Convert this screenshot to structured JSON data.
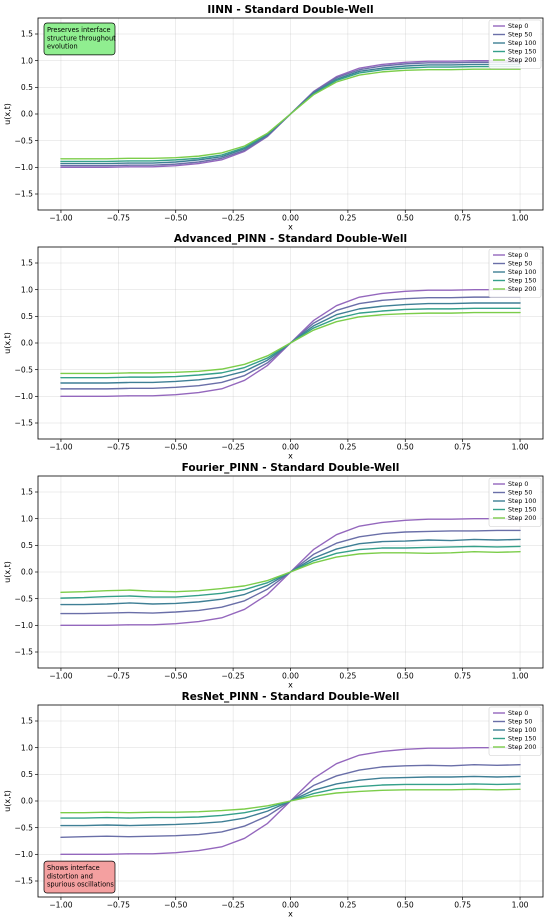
{
  "colors": {
    "Step 0": "#9467bd",
    "Step 50": "#6a6fa8",
    "Step 100": "#3f7f95",
    "Step 150": "#35a08a",
    "Step 200": "#7ccd4a"
  },
  "chart_data": [
    {
      "type": "line",
      "title": "IINN - Standard Double-Well",
      "xlabel": "x",
      "ylabel": "u(x,t)",
      "xlim": [
        -1.1,
        1.1
      ],
      "ylim": [
        -1.8,
        1.8
      ],
      "xticks": [
        -1.0,
        -0.75,
        -0.5,
        -0.25,
        0.0,
        0.25,
        0.5,
        0.75,
        1.0
      ],
      "xtick_labels": [
        "−1.00",
        "−0.75",
        "−0.50",
        "−0.25",
        "0.00",
        "0.25",
        "0.50",
        "0.75",
        "1.00"
      ],
      "yticks": [
        -1.5,
        -1.0,
        -0.5,
        0.0,
        0.5,
        1.0,
        1.5
      ],
      "ytick_labels": [
        "−1.5",
        "−1.0",
        "−0.5",
        "0.0",
        "0.5",
        "1.0",
        "1.5"
      ],
      "grid": true,
      "legend_position": "top-right",
      "x": [
        -1.0,
        -0.9,
        -0.8,
        -0.7,
        -0.6,
        -0.5,
        -0.4,
        -0.3,
        -0.2,
        -0.1,
        0.0,
        0.1,
        0.2,
        0.3,
        0.4,
        0.5,
        0.6,
        0.7,
        0.8,
        0.9,
        1.0
      ],
      "series": [
        {
          "name": "Step 0",
          "values": [
            -1.0,
            -1.0,
            -1.0,
            -0.99,
            -0.99,
            -0.97,
            -0.93,
            -0.86,
            -0.7,
            -0.42,
            0.0,
            0.42,
            0.7,
            0.86,
            0.93,
            0.97,
            0.99,
            0.99,
            1.0,
            1.0,
            1.0
          ]
        },
        {
          "name": "Step 50",
          "values": [
            -0.97,
            -0.97,
            -0.97,
            -0.96,
            -0.96,
            -0.94,
            -0.9,
            -0.83,
            -0.68,
            -0.41,
            0.0,
            0.41,
            0.68,
            0.83,
            0.9,
            0.94,
            0.96,
            0.96,
            0.97,
            0.97,
            0.97
          ]
        },
        {
          "name": "Step 100",
          "values": [
            -0.93,
            -0.93,
            -0.93,
            -0.92,
            -0.92,
            -0.9,
            -0.86,
            -0.8,
            -0.65,
            -0.39,
            0.0,
            0.39,
            0.65,
            0.8,
            0.86,
            0.9,
            0.92,
            0.92,
            0.93,
            0.93,
            0.93
          ]
        },
        {
          "name": "Step 150",
          "values": [
            -0.89,
            -0.89,
            -0.89,
            -0.88,
            -0.88,
            -0.86,
            -0.83,
            -0.77,
            -0.63,
            -0.37,
            0.0,
            0.37,
            0.63,
            0.77,
            0.83,
            0.86,
            0.88,
            0.88,
            0.89,
            0.89,
            0.89
          ]
        },
        {
          "name": "Step 200",
          "values": [
            -0.84,
            -0.84,
            -0.84,
            -0.83,
            -0.83,
            -0.82,
            -0.79,
            -0.73,
            -0.6,
            -0.36,
            0.0,
            0.36,
            0.6,
            0.73,
            0.79,
            0.82,
            0.83,
            0.83,
            0.84,
            0.84,
            0.84
          ]
        }
      ],
      "annotation": {
        "text": [
          "Preserves interface",
          "structure throughout",
          "evolution"
        ],
        "background": "#90ee90",
        "position": "top-left"
      }
    },
    {
      "type": "line",
      "title": "Advanced_PINN - Standard Double-Well",
      "xlabel": "x",
      "ylabel": "u(x,t)",
      "xlim": [
        -1.1,
        1.1
      ],
      "ylim": [
        -1.8,
        1.8
      ],
      "xticks": [
        -1.0,
        -0.75,
        -0.5,
        -0.25,
        0.0,
        0.25,
        0.5,
        0.75,
        1.0
      ],
      "xtick_labels": [
        "−1.00",
        "−0.75",
        "−0.50",
        "−0.25",
        "0.00",
        "0.25",
        "0.50",
        "0.75",
        "1.00"
      ],
      "yticks": [
        -1.5,
        -1.0,
        -0.5,
        0.0,
        0.5,
        1.0,
        1.5
      ],
      "ytick_labels": [
        "−1.5",
        "−1.0",
        "−0.5",
        "0.0",
        "0.5",
        "1.0",
        "1.5"
      ],
      "grid": true,
      "legend_position": "top-right",
      "x": [
        -1.0,
        -0.9,
        -0.8,
        -0.7,
        -0.6,
        -0.5,
        -0.4,
        -0.3,
        -0.2,
        -0.1,
        0.0,
        0.1,
        0.2,
        0.3,
        0.4,
        0.5,
        0.6,
        0.7,
        0.8,
        0.9,
        1.0
      ],
      "series": [
        {
          "name": "Step 0",
          "values": [
            -1.0,
            -1.0,
            -1.0,
            -0.99,
            -0.99,
            -0.97,
            -0.93,
            -0.86,
            -0.7,
            -0.42,
            0.0,
            0.42,
            0.7,
            0.86,
            0.93,
            0.97,
            0.99,
            0.99,
            1.0,
            1.0,
            1.0
          ]
        },
        {
          "name": "Step 50",
          "values": [
            -0.86,
            -0.86,
            -0.86,
            -0.85,
            -0.85,
            -0.83,
            -0.8,
            -0.74,
            -0.61,
            -0.37,
            0.0,
            0.37,
            0.61,
            0.74,
            0.8,
            0.83,
            0.85,
            0.85,
            0.86,
            0.86,
            0.86
          ]
        },
        {
          "name": "Step 100",
          "values": [
            -0.75,
            -0.75,
            -0.75,
            -0.74,
            -0.74,
            -0.72,
            -0.69,
            -0.64,
            -0.53,
            -0.32,
            0.0,
            0.32,
            0.53,
            0.64,
            0.69,
            0.72,
            0.74,
            0.74,
            0.75,
            0.75,
            0.75
          ]
        },
        {
          "name": "Step 150",
          "values": [
            -0.65,
            -0.65,
            -0.65,
            -0.64,
            -0.64,
            -0.63,
            -0.6,
            -0.56,
            -0.46,
            -0.28,
            0.0,
            0.28,
            0.46,
            0.56,
            0.6,
            0.63,
            0.64,
            0.64,
            0.65,
            0.65,
            0.65
          ]
        },
        {
          "name": "Step 200",
          "values": [
            -0.57,
            -0.57,
            -0.57,
            -0.56,
            -0.56,
            -0.55,
            -0.53,
            -0.49,
            -0.4,
            -0.24,
            0.0,
            0.24,
            0.4,
            0.49,
            0.53,
            0.55,
            0.56,
            0.56,
            0.57,
            0.57,
            0.57
          ]
        }
      ]
    },
    {
      "type": "line",
      "title": "Fourier_PINN - Standard Double-Well",
      "xlabel": "x",
      "ylabel": "u(x,t)",
      "xlim": [
        -1.1,
        1.1
      ],
      "ylim": [
        -1.8,
        1.8
      ],
      "xticks": [
        -1.0,
        -0.75,
        -0.5,
        -0.25,
        0.0,
        0.25,
        0.5,
        0.75,
        1.0
      ],
      "xtick_labels": [
        "−1.00",
        "−0.75",
        "−0.50",
        "−0.25",
        "0.00",
        "0.25",
        "0.50",
        "0.75",
        "1.00"
      ],
      "yticks": [
        -1.5,
        -1.0,
        -0.5,
        0.0,
        0.5,
        1.0,
        1.5
      ],
      "ytick_labels": [
        "−1.5",
        "−1.0",
        "−0.5",
        "0.0",
        "0.5",
        "1.0",
        "1.5"
      ],
      "grid": true,
      "legend_position": "top-right",
      "x": [
        -1.0,
        -0.9,
        -0.8,
        -0.7,
        -0.6,
        -0.5,
        -0.4,
        -0.3,
        -0.2,
        -0.1,
        0.0,
        0.1,
        0.2,
        0.3,
        0.4,
        0.5,
        0.6,
        0.7,
        0.8,
        0.9,
        1.0
      ],
      "series": [
        {
          "name": "Step 0",
          "values": [
            -1.0,
            -1.0,
            -1.0,
            -0.99,
            -0.99,
            -0.97,
            -0.93,
            -0.86,
            -0.7,
            -0.42,
            0.0,
            0.42,
            0.7,
            0.86,
            0.93,
            0.97,
            0.99,
            0.99,
            1.0,
            1.0,
            1.0
          ]
        },
        {
          "name": "Step 50",
          "values": [
            -0.78,
            -0.78,
            -0.77,
            -0.76,
            -0.77,
            -0.75,
            -0.72,
            -0.66,
            -0.54,
            -0.32,
            0.0,
            0.33,
            0.54,
            0.66,
            0.72,
            0.75,
            0.76,
            0.77,
            0.77,
            0.78,
            0.78
          ]
        },
        {
          "name": "Step 100",
          "values": [
            -0.61,
            -0.61,
            -0.6,
            -0.58,
            -0.6,
            -0.59,
            -0.56,
            -0.51,
            -0.42,
            -0.25,
            0.0,
            0.26,
            0.43,
            0.53,
            0.57,
            0.58,
            0.6,
            0.59,
            0.61,
            0.6,
            0.61
          ]
        },
        {
          "name": "Step 150",
          "values": [
            -0.49,
            -0.48,
            -0.46,
            -0.45,
            -0.47,
            -0.47,
            -0.44,
            -0.4,
            -0.33,
            -0.2,
            0.0,
            0.21,
            0.35,
            0.42,
            0.45,
            0.45,
            0.46,
            0.47,
            0.48,
            0.47,
            0.48
          ]
        },
        {
          "name": "Step 200",
          "values": [
            -0.38,
            -0.37,
            -0.35,
            -0.34,
            -0.36,
            -0.37,
            -0.35,
            -0.31,
            -0.26,
            -0.16,
            0.0,
            0.17,
            0.28,
            0.34,
            0.36,
            0.36,
            0.35,
            0.36,
            0.38,
            0.37,
            0.38
          ]
        }
      ]
    },
    {
      "type": "line",
      "title": "ResNet_PINN - Standard Double-Well",
      "xlabel": "x",
      "ylabel": "u(x,t)",
      "xlim": [
        -1.1,
        1.1
      ],
      "ylim": [
        -1.8,
        1.8
      ],
      "xticks": [
        -1.0,
        -0.75,
        -0.5,
        -0.25,
        0.0,
        0.25,
        0.5,
        0.75,
        1.0
      ],
      "xtick_labels": [
        "−1.00",
        "−0.75",
        "−0.50",
        "−0.25",
        "0.00",
        "0.25",
        "0.50",
        "0.75",
        "1.00"
      ],
      "yticks": [
        -1.5,
        -1.0,
        -0.5,
        0.0,
        0.5,
        1.0,
        1.5
      ],
      "ytick_labels": [
        "−1.5",
        "−1.0",
        "−0.5",
        "0.0",
        "0.5",
        "1.0",
        "1.5"
      ],
      "grid": true,
      "legend_position": "top-right",
      "x": [
        -1.0,
        -0.9,
        -0.8,
        -0.7,
        -0.6,
        -0.5,
        -0.4,
        -0.3,
        -0.2,
        -0.1,
        0.0,
        0.1,
        0.2,
        0.3,
        0.4,
        0.5,
        0.6,
        0.7,
        0.8,
        0.9,
        1.0
      ],
      "series": [
        {
          "name": "Step 0",
          "values": [
            -1.0,
            -1.0,
            -1.0,
            -0.99,
            -0.99,
            -0.97,
            -0.93,
            -0.86,
            -0.7,
            -0.42,
            0.0,
            0.42,
            0.7,
            0.86,
            0.93,
            0.97,
            0.99,
            0.99,
            1.0,
            1.0,
            1.0
          ]
        },
        {
          "name": "Step 50",
          "values": [
            -0.68,
            -0.67,
            -0.66,
            -0.67,
            -0.66,
            -0.65,
            -0.63,
            -0.58,
            -0.47,
            -0.28,
            0.0,
            0.29,
            0.47,
            0.58,
            0.64,
            0.66,
            0.67,
            0.66,
            0.68,
            0.67,
            0.68
          ]
        },
        {
          "name": "Step 100",
          "values": [
            -0.46,
            -0.46,
            -0.45,
            -0.46,
            -0.45,
            -0.44,
            -0.42,
            -0.39,
            -0.32,
            -0.19,
            0.0,
            0.2,
            0.32,
            0.39,
            0.43,
            0.44,
            0.45,
            0.45,
            0.46,
            0.45,
            0.46
          ]
        },
        {
          "name": "Step 150",
          "values": [
            -0.32,
            -0.32,
            -0.31,
            -0.32,
            -0.31,
            -0.31,
            -0.3,
            -0.27,
            -0.22,
            -0.13,
            0.0,
            0.14,
            0.23,
            0.27,
            0.3,
            0.31,
            0.31,
            0.31,
            0.32,
            0.31,
            0.32
          ]
        },
        {
          "name": "Step 200",
          "values": [
            -0.22,
            -0.22,
            -0.21,
            -0.22,
            -0.21,
            -0.21,
            -0.2,
            -0.18,
            -0.15,
            -0.09,
            0.0,
            0.09,
            0.15,
            0.18,
            0.2,
            0.21,
            0.21,
            0.21,
            0.22,
            0.21,
            0.22
          ]
        }
      ],
      "annotation": {
        "text": [
          "Shows interface",
          "distortion and",
          "spurious oscillations"
        ],
        "background": "#f4a0a0",
        "position": "bottom-left"
      }
    }
  ]
}
